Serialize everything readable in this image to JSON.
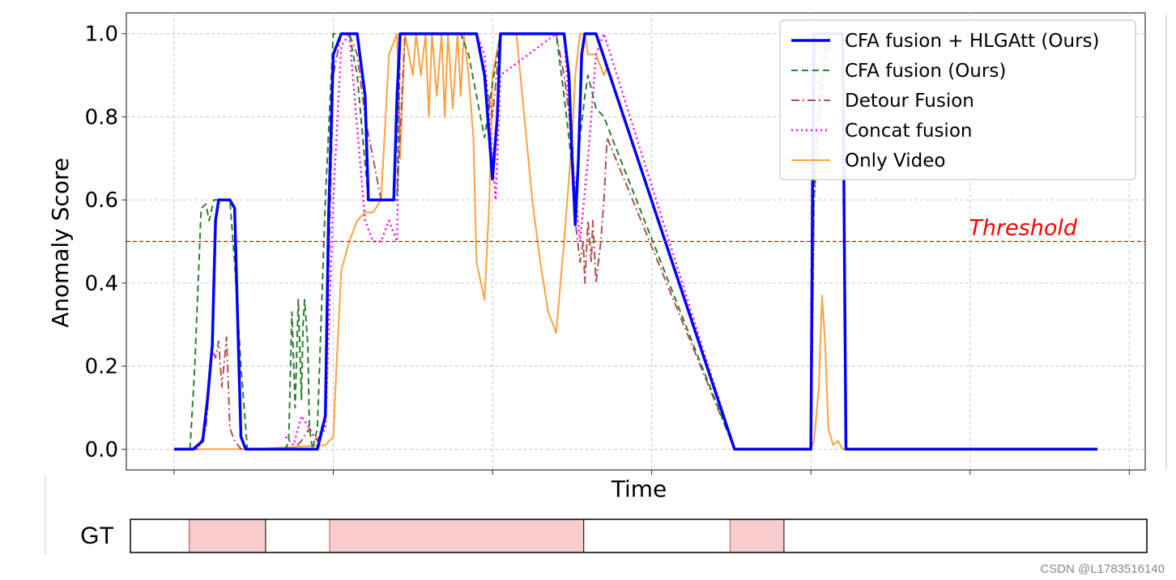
{
  "chart_data": {
    "type": "line",
    "xlabel": "Time",
    "ylabel": "Anomaly Score",
    "xlim": [
      -0.3,
      6.1
    ],
    "ylim": [
      -0.05,
      1.05
    ],
    "yticks": [
      0.0,
      0.2,
      0.4,
      0.6,
      0.8,
      1.0
    ],
    "ytick_labels": [
      "0.0",
      "0.2",
      "0.4",
      "0.6",
      "0.8",
      "1.0"
    ],
    "xticks": [
      0,
      1,
      2,
      3,
      4,
      5,
      6
    ],
    "grid": true,
    "legend_location": "upper right",
    "threshold": {
      "value": 0.5,
      "label": "Threshold",
      "color": "#ff0000",
      "style": "dashed"
    },
    "series": [
      {
        "name": "CFA fusion + HLGAtt (Ours)",
        "color": "#0000ff",
        "style": "solid",
        "width": 3.5,
        "x": [
          0,
          0.12,
          0.18,
          0.21,
          0.24,
          0.26,
          0.28,
          0.35,
          0.38,
          0.4,
          0.42,
          0.45,
          0.47,
          0.9,
          0.95,
          0.97,
          1.0,
          1.05,
          1.1,
          1.15,
          1.2,
          1.22,
          1.25,
          1.28,
          1.3,
          1.38,
          1.4,
          1.42,
          1.9,
          1.95,
          1.97,
          2.0,
          2.03,
          2.05,
          2.4,
          2.45,
          2.48,
          2.5,
          2.52,
          2.54,
          2.56,
          2.58,
          2.6,
          2.62,
          2.65,
          3.52,
          3.54,
          3.56,
          3.58,
          3.6,
          3.62,
          3.64,
          3.66,
          3.68,
          4.0,
          4.01,
          4.02,
          4.04,
          4.06,
          4.08,
          4.12,
          4.16,
          4.18,
          4.2,
          4.22,
          5.8
        ],
        "y": [
          0,
          0,
          0.02,
          0.12,
          0.25,
          0.55,
          0.6,
          0.6,
          0.58,
          0.3,
          0.03,
          0,
          0,
          0,
          0.08,
          0.55,
          0.95,
          1.0,
          1.0,
          1.0,
          0.85,
          0.6,
          0.6,
          0.6,
          0.6,
          0.6,
          0.85,
          1.0,
          1.0,
          0.9,
          0.8,
          0.65,
          0.8,
          1.0,
          1.0,
          1.0,
          0.9,
          0.7,
          0.54,
          0.7,
          0.95,
          1.0,
          1.0,
          1.0,
          1.0,
          0,
          0,
          0,
          0,
          0,
          0,
          0,
          0,
          0,
          0,
          0.6,
          1.0,
          1.0,
          1.0,
          1.0,
          1.0,
          1.0,
          1.0,
          1.0,
          0,
          0
        ]
      },
      {
        "name": "CFA fusion (Ours)",
        "color": "#2e7d32",
        "style": "dashed",
        "width": 2,
        "x": [
          0.1,
          0.13,
          0.17,
          0.2,
          0.22,
          0.25,
          0.3,
          0.35,
          0.38,
          0.42,
          0.46,
          0.7,
          0.72,
          0.74,
          0.76,
          0.78,
          0.8,
          0.81,
          0.82,
          0.84,
          0.85,
          0.87,
          0.9,
          0.95,
          1.0,
          1.05,
          1.1,
          1.15,
          1.22,
          1.3,
          1.4,
          1.42,
          1.6,
          1.8,
          1.85,
          1.9,
          1.95,
          2.0,
          2.05,
          2.3,
          2.4,
          2.45,
          2.48,
          2.52,
          2.55,
          2.58,
          2.6,
          2.65,
          2.7,
          2.75,
          3.52,
          3.66,
          3.68,
          4.0,
          4.02,
          4.04,
          4.08,
          4.12,
          4.2,
          4.22
        ],
        "y": [
          0,
          0.2,
          0.58,
          0.59,
          0.55,
          0.6,
          0.6,
          0.6,
          0.45,
          0.2,
          0,
          0,
          0.02,
          0.33,
          0.1,
          0.36,
          0.12,
          0.3,
          0.36,
          0.25,
          0.05,
          0,
          0.05,
          0.6,
          1.0,
          1.0,
          1.0,
          0.9,
          0.6,
          0.6,
          0.6,
          1.0,
          1.0,
          1.0,
          0.95,
          0.85,
          0.75,
          0.88,
          1.0,
          1.0,
          1.0,
          0.85,
          0.75,
          0.6,
          0.75,
          0.85,
          0.9,
          0.82,
          0.8,
          0.75,
          0,
          0,
          0,
          0,
          0.6,
          0.8,
          0.9,
          1.0,
          1.0,
          0
        ]
      },
      {
        "name": "Detour Fusion",
        "color": "#b05050",
        "style": "dashdot",
        "width": 2,
        "x": [
          0.1,
          0.15,
          0.18,
          0.2,
          0.22,
          0.24,
          0.26,
          0.28,
          0.3,
          0.33,
          0.35,
          0.38,
          0.42,
          0.46,
          0.75,
          0.8,
          0.85,
          0.9,
          0.95,
          1.0,
          1.05,
          1.1,
          1.15,
          1.2,
          1.3,
          1.4,
          1.45,
          1.9,
          1.95,
          2.0,
          2.05,
          2.4,
          2.45,
          2.5,
          2.52,
          2.55,
          2.57,
          2.58,
          2.6,
          2.62,
          2.63,
          2.65,
          2.68,
          2.7,
          2.72,
          3.52,
          3.66,
          3.68,
          4.0,
          4.02,
          4.06,
          4.1,
          4.14,
          4.2,
          4.22
        ],
        "y": [
          0,
          0,
          0.03,
          0.05,
          0.15,
          0.24,
          0.22,
          0.26,
          0.15,
          0.27,
          0.05,
          0.02,
          0,
          0,
          0,
          0.02,
          0.05,
          0.02,
          0.08,
          0.9,
          1.0,
          1.0,
          0.95,
          0.8,
          0.6,
          0.6,
          1.0,
          1.0,
          0.9,
          0.8,
          1.0,
          1.0,
          0.9,
          0.75,
          0.55,
          0.45,
          0.5,
          0.4,
          0.55,
          0.45,
          0.55,
          0.4,
          0.5,
          0.6,
          0.75,
          0,
          0,
          0,
          0,
          0.65,
          0.9,
          1.0,
          1.0,
          1.0,
          0
        ]
      },
      {
        "name": "Concat fusion",
        "color": "#ff00ff",
        "style": "dotted",
        "width": 2.5,
        "x": [
          0.7,
          0.75,
          0.8,
          0.85,
          0.88,
          0.9,
          0.95,
          1.0,
          1.05,
          1.1,
          1.2,
          1.25,
          1.3,
          1.35,
          1.4,
          1.42,
          1.9,
          1.95,
          1.98,
          2.02,
          2.05,
          2.4,
          2.45,
          2.5,
          2.55,
          2.6,
          2.65,
          2.7,
          3.52,
          3.66,
          3.68,
          4.0,
          4.02,
          4.06,
          4.1,
          4.15,
          4.2,
          4.22
        ],
        "y": [
          0.03,
          0.01,
          0.08,
          0.05,
          0.03,
          0.02,
          0.05,
          0.6,
          0.97,
          1.0,
          0.55,
          0.5,
          0.5,
          0.55,
          0.5,
          1.0,
          1.0,
          0.95,
          0.8,
          0.6,
          0.9,
          1.0,
          1.0,
          0.7,
          0.5,
          0.7,
          0.95,
          1.0,
          0,
          0,
          0,
          0,
          0.6,
          0.8,
          0.95,
          1.0,
          1.0,
          0
        ]
      },
      {
        "name": "Only Video",
        "color": "#ffa040",
        "style": "solid",
        "width": 2,
        "x": [
          0,
          0.5,
          0.95,
          1.0,
          1.02,
          1.05,
          1.1,
          1.15,
          1.2,
          1.25,
          1.3,
          1.35,
          1.4,
          1.42,
          1.45,
          1.5,
          1.52,
          1.55,
          1.58,
          1.6,
          1.62,
          1.65,
          1.68,
          1.7,
          1.72,
          1.75,
          1.78,
          1.8,
          1.82,
          1.85,
          1.88,
          1.9,
          1.95,
          1.98,
          2.0,
          2.05,
          2.1,
          2.15,
          2.2,
          2.25,
          2.3,
          2.35,
          2.4,
          2.45,
          2.5,
          2.52,
          2.55,
          2.58,
          2.6,
          2.65,
          2.7,
          2.72,
          3.52,
          3.66,
          3.68,
          4.0,
          4.02,
          4.05,
          4.07,
          4.09,
          4.11,
          4.14,
          4.17,
          4.2,
          4.22
        ],
        "y": [
          0,
          0,
          0.01,
          0.03,
          0.2,
          0.43,
          0.5,
          0.55,
          0.57,
          0.57,
          0.6,
          0.95,
          1.0,
          0.7,
          1.0,
          0.9,
          1.0,
          0.9,
          1.0,
          0.8,
          1.0,
          0.85,
          1.0,
          0.8,
          1.0,
          0.82,
          1.0,
          0.85,
          1.0,
          0.9,
          0.75,
          0.45,
          0.36,
          0.6,
          0.9,
          1.0,
          1.0,
          1.0,
          0.8,
          0.6,
          0.45,
          0.33,
          0.28,
          0.5,
          0.75,
          0.9,
          1.0,
          1.0,
          0.95,
          0.95,
          0.9,
          0.92,
          0,
          0,
          0,
          0,
          0.02,
          0.15,
          0.37,
          0.25,
          0.05,
          0.01,
          0.02,
          0,
          0
        ]
      }
    ]
  },
  "gt": {
    "label": "GT",
    "segments": [
      {
        "start": 0.0,
        "end": 0.058,
        "anomaly": false
      },
      {
        "start": 0.058,
        "end": 0.133,
        "anomaly": true
      },
      {
        "start": 0.133,
        "end": 0.196,
        "anomaly": false
      },
      {
        "start": 0.196,
        "end": 0.446,
        "anomaly": true
      },
      {
        "start": 0.446,
        "end": 0.59,
        "anomaly": false
      },
      {
        "start": 0.59,
        "end": 0.643,
        "anomaly": true
      },
      {
        "start": 0.643,
        "end": 1.0,
        "anomaly": false
      }
    ],
    "anomaly_color": "#f8cccc",
    "normal_color": "#ffffff",
    "border_color": "#c06060"
  },
  "watermark": "CSDN @L1783516140"
}
